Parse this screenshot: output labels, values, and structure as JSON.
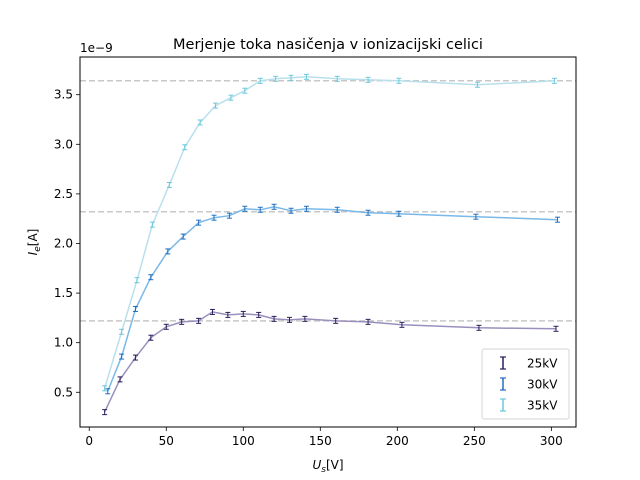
{
  "chart_data": {
    "type": "line",
    "title": "Merjenje toka nasičenja v ionizacijski celici",
    "xlabel": "U_s[V]",
    "ylabel": "I_e[A]",
    "y_scale_label": "1e−9",
    "xlim": [
      -6,
      316
    ],
    "ylim": [
      0.15,
      3.88
    ],
    "xticks": [
      0,
      50,
      100,
      150,
      200,
      250,
      300
    ],
    "xtick_labels": [
      "0",
      "50",
      "100",
      "150",
      "200",
      "250",
      "300"
    ],
    "yticks": [
      0.5,
      1.0,
      1.5,
      2.0,
      2.5,
      3.0,
      3.5
    ],
    "ytick_labels": [
      "0.5",
      "1.0",
      "1.5",
      "2.0",
      "2.5",
      "3.0",
      "3.5"
    ],
    "grid": false,
    "legend_position": "lower-right",
    "saturation_lines": [
      1.22,
      2.32,
      3.64
    ],
    "saturation_line_color": "#c8c8c8",
    "series": [
      {
        "name": "25kV",
        "color": "#9b8fbd",
        "marker_color": "#2a1f5c",
        "x": [
          10,
          20,
          30,
          40,
          50,
          60,
          71,
          80,
          90,
          100,
          110,
          120,
          130,
          140,
          160,
          181,
          203,
          253,
          303
        ],
        "y": [
          0.3,
          0.63,
          0.85,
          1.05,
          1.16,
          1.21,
          1.22,
          1.31,
          1.28,
          1.29,
          1.28,
          1.24,
          1.23,
          1.24,
          1.22,
          1.21,
          1.18,
          1.15,
          1.14
        ]
      },
      {
        "name": "30kV",
        "color": "#7ab8e8",
        "marker_color": "#1f6fc0",
        "x": [
          12,
          21,
          30,
          40,
          51,
          61,
          71,
          81,
          91,
          101,
          111,
          120,
          131,
          141,
          161,
          181,
          201,
          251,
          304
        ],
        "y": [
          0.51,
          0.86,
          1.34,
          1.66,
          1.92,
          2.07,
          2.21,
          2.26,
          2.28,
          2.35,
          2.34,
          2.37,
          2.33,
          2.35,
          2.34,
          2.31,
          2.3,
          2.27,
          2.24
        ]
      },
      {
        "name": "35kV",
        "color": "#b8e0ec",
        "marker_color": "#6cc8dc",
        "x": [
          10,
          21,
          31,
          41,
          52,
          62,
          72,
          82,
          92,
          101,
          111,
          121,
          131,
          141,
          161,
          181,
          201,
          252,
          302
        ],
        "y": [
          0.54,
          1.11,
          1.63,
          2.19,
          2.59,
          2.97,
          3.22,
          3.39,
          3.47,
          3.54,
          3.64,
          3.66,
          3.67,
          3.68,
          3.66,
          3.65,
          3.64,
          3.6,
          3.64
        ]
      }
    ]
  }
}
